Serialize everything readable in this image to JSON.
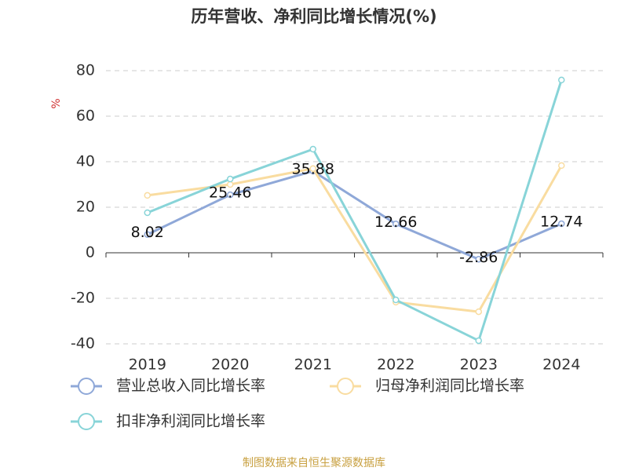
{
  "chart_data": {
    "type": "line",
    "title": "历年营收、净利同比增长情况(%)",
    "y_label": "%",
    "categories": [
      "2019",
      "2020",
      "2021",
      "2022",
      "2023",
      "2024"
    ],
    "series": [
      {
        "name": "营业总收入同比增长率",
        "color": "#8fa8d8",
        "values": [
          8.02,
          25.46,
          35.88,
          12.66,
          -2.86,
          12.74
        ],
        "data_labels": true
      },
      {
        "name": "归母净利润同比增长率",
        "color": "#f9dca0",
        "values": [
          25.2,
          30,
          37,
          -21.7,
          -25.9,
          38.3
        ]
      },
      {
        "name": "扣非净利润同比增长率",
        "color": "#88d4d8",
        "values": [
          17.6,
          32.4,
          45.5,
          -20.7,
          -38.6,
          75.9
        ]
      }
    ],
    "ylim": [
      -40,
      80
    ],
    "yticks": [
      -40,
      -20,
      0,
      20,
      40,
      60,
      80
    ],
    "grid": true,
    "footer": "制图数据来自恒生聚源数据库"
  }
}
